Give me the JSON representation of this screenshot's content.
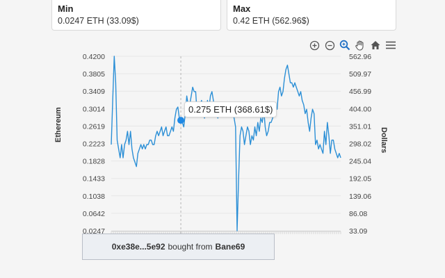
{
  "stats": {
    "min": {
      "title": "Min",
      "value": "0.0247 ETH (33.09$)"
    },
    "max": {
      "title": "Max",
      "value": "0.42 ETH (562.96$)"
    }
  },
  "toolbar": {
    "icons": [
      "zoom-in-icon",
      "zoom-out-icon",
      "magnifier-icon",
      "pan-hand-icon",
      "home-icon",
      "menu-icon"
    ],
    "active_color": "#1f6fc5"
  },
  "chart_data": {
    "type": "line",
    "ylabel": "Ethereum",
    "y2label": "Dollars",
    "ylim": [
      0.0247,
      0.42
    ],
    "y2lim": [
      33.09,
      562.96
    ],
    "y_ticks": [
      "0.4200",
      "0.3805",
      "0.3409",
      "0.3014",
      "0.2619",
      "0.2223",
      "0.1828",
      "0.1433",
      "0.1038",
      "0.0642",
      "0.0247"
    ],
    "y2_ticks": [
      "562.96",
      "509.97",
      "456.99",
      "404.00",
      "351.01",
      "298.02",
      "245.04",
      "192.05",
      "139.06",
      "86.08",
      "33.09"
    ],
    "line_color": "#2b8fd6",
    "series": [
      {
        "values": [
          0.22,
          0.32,
          0.42,
          0.36,
          0.23,
          0.21,
          0.19,
          0.22,
          0.19,
          0.22,
          0.23,
          0.25,
          0.22,
          0.25,
          0.21,
          0.19,
          0.18,
          0.17,
          0.2,
          0.21,
          0.22,
          0.21,
          0.22,
          0.21,
          0.22,
          0.22,
          0.23,
          0.23,
          0.22,
          0.22,
          0.24,
          0.25,
          0.24,
          0.25,
          0.26,
          0.24,
          0.25,
          0.26,
          0.24,
          0.24,
          0.25,
          0.26,
          0.25,
          0.28,
          0.3,
          0.305,
          0.28,
          0.275,
          0.27,
          0.26,
          0.29,
          0.33,
          0.31,
          0.31,
          0.33,
          0.35,
          0.34,
          0.34,
          0.29,
          0.3,
          0.31,
          0.32,
          0.29,
          0.28,
          0.29,
          0.32,
          0.3,
          0.33,
          0.34,
          0.32,
          0.3,
          0.3,
          0.28,
          0.3,
          0.29,
          0.31,
          0.3,
          0.29,
          0.31,
          0.3,
          0.29,
          0.3,
          0.29,
          0.28,
          0.26,
          0.0247,
          0.14,
          0.24,
          0.26,
          0.25,
          0.22,
          0.24,
          0.26,
          0.25,
          0.22,
          0.24,
          0.23,
          0.26,
          0.24,
          0.27,
          0.25,
          0.28,
          0.27,
          0.3,
          0.26,
          0.24,
          0.25,
          0.27,
          0.27,
          0.28,
          0.29,
          0.31,
          0.3,
          0.34,
          0.35,
          0.33,
          0.34,
          0.37,
          0.39,
          0.4,
          0.38,
          0.36,
          0.36,
          0.35,
          0.36,
          0.35,
          0.34,
          0.33,
          0.34,
          0.32,
          0.31,
          0.29,
          0.3,
          0.27,
          0.25,
          0.28,
          0.3,
          0.29,
          0.22,
          0.23,
          0.21,
          0.22,
          0.21,
          0.2,
          0.25,
          0.22,
          0.27,
          0.24,
          0.2,
          0.23,
          0.23,
          0.21,
          0.2,
          0.19,
          0.2,
          0.19
        ]
      }
    ],
    "hover_index": 47,
    "hover_color": "#1e88e5"
  },
  "tooltip": {
    "text": "0.275 ETH (368.61$)"
  },
  "info": {
    "address": "0xe38e...5e92",
    "middle": "bought from",
    "seller": "Bane69"
  }
}
